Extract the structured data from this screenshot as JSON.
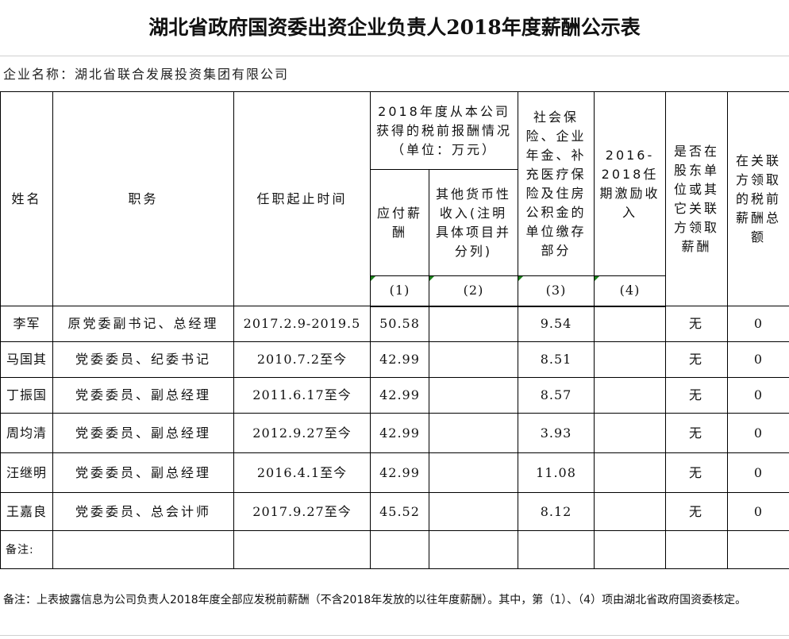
{
  "title": "湖北省政府国资委出资企业负责人2018年度薪酬公示表",
  "company_label": "企业名称：湖北省联合发展投资集团有限公司",
  "headers": {
    "name": "姓名",
    "position": "职务",
    "term": "任职起止时间",
    "pay_group": "2018年度从本公司获得的税前报酬情况（单位：万元）",
    "payable": "应付薪酬",
    "other_income": "其他货币性收入(注明具体项目并分列)",
    "insurance": "社会保险、企业年金、补充医疗保险及住房公积金的单位缴存部分",
    "incentive": "2016-2018任期激励收入",
    "shareholder": "是否在股东单位或其它关联方领取薪酬",
    "related_total": "在关联方领取的税前薪酬总额",
    "n1": "(1)",
    "n2": "(2)",
    "n3": "(3)",
    "n4": "(4)"
  },
  "rows": [
    {
      "name": "李军",
      "position": "原党委副书记、总经理",
      "term": "2017.2.9-2019.5",
      "payable": "50.58",
      "other": "",
      "insurance": "9.54",
      "incentive": "",
      "shareholder": "无",
      "related": "0"
    },
    {
      "name": "马国其",
      "position": "党委委员、纪委书记",
      "term": "2010.7.2至今",
      "payable": "42.99",
      "other": "",
      "insurance": "8.51",
      "incentive": "",
      "shareholder": "无",
      "related": "0"
    },
    {
      "name": "丁振国",
      "position": "党委委员、副总经理",
      "term": "2011.6.17至今",
      "payable": "42.99",
      "other": "",
      "insurance": "8.57",
      "incentive": "",
      "shareholder": "无",
      "related": "0"
    },
    {
      "name": "周均清",
      "position": "党委委员、副总经理",
      "term": "2012.9.27至今",
      "payable": "42.99",
      "other": "",
      "insurance": "3.93",
      "incentive": "",
      "shareholder": "无",
      "related": "0"
    },
    {
      "name": "汪继明",
      "position": "党委委员、副总经理",
      "term": "2016.4.1至今",
      "payable": "42.99",
      "other": "",
      "insurance": "11.08",
      "incentive": "",
      "shareholder": "无",
      "related": "0"
    },
    {
      "name": "王嘉良",
      "position": "党委委员、总会计师",
      "term": "2017.9.27至今",
      "payable": "45.52",
      "other": "",
      "insurance": "8.12",
      "incentive": "",
      "shareholder": "无",
      "related": "0"
    }
  ],
  "remarks_label": "备注:",
  "footnote": "备注：上表披露信息为公司负责人2018年度全部应发税前薪酬（不含2018年发放的以往年度薪酬）。其中，第（1）、（4）项由湖北省政府国资委核定。"
}
